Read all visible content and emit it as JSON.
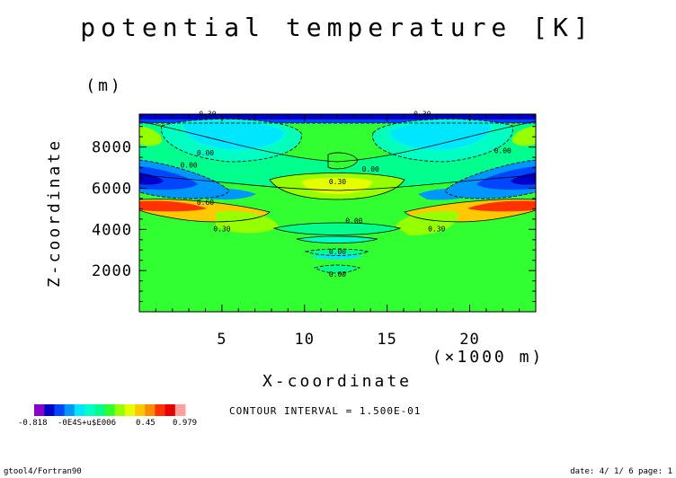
{
  "chart_data": {
    "type": "heatmap",
    "title": "potential temperature [K]",
    "xlabel": "X-coordinate",
    "x_unit": "(×1000 m)",
    "ylabel": "Z-coordinate",
    "y_unit": "(m)",
    "xlim": [
      0,
      24
    ],
    "ylim": [
      0,
      9600
    ],
    "x_ticks": [
      5,
      10,
      15,
      20
    ],
    "y_ticks": [
      2000,
      4000,
      6000,
      8000
    ],
    "x_tick_labels": [
      "5",
      "10",
      "15",
      "20"
    ],
    "y_tick_labels": [
      "2000",
      "4000",
      "6000",
      "8000"
    ],
    "contour_interval_text": "CONTOUR INTERVAL = 1.500E-01",
    "contour_labels": [
      {
        "text": "-0.30",
        "x": 4,
        "z": 9500
      },
      {
        "text": "-0.30",
        "x": 17,
        "z": 9500
      },
      {
        "text": "0.00",
        "x": 3,
        "z": 7000
      },
      {
        "text": "0.00",
        "x": 4,
        "z": 7600
      },
      {
        "text": "0.00",
        "x": 14,
        "z": 6800
      },
      {
        "text": "0.00",
        "x": 22,
        "z": 7700
      },
      {
        "text": "0.30",
        "x": 12,
        "z": 6200
      },
      {
        "text": "0.60",
        "x": 4,
        "z": 5200
      },
      {
        "text": "0.30",
        "x": 5,
        "z": 3900
      },
      {
        "text": "0.00",
        "x": 13,
        "z": 4300
      },
      {
        "text": "0.30",
        "x": 18,
        "z": 3900
      },
      {
        "text": "0.00",
        "x": 12,
        "z": 2800
      },
      {
        "text": "0.00",
        "x": 12,
        "z": 1700
      }
    ],
    "colorbar": {
      "min_label": "-0.818",
      "mid_label": "-0E4S+u$E006",
      "val_label": "0.45",
      "max_label": "0.979",
      "colors": [
        "#8b00c8",
        "#0000c8",
        "#0046ff",
        "#0096ff",
        "#00e6ff",
        "#00ffc8",
        "#00ff8c",
        "#32ff32",
        "#96ff00",
        "#e6ff00",
        "#ffc800",
        "#ff8c00",
        "#ff3200",
        "#e60000",
        "#ffa0a0"
      ]
    }
  },
  "footer": {
    "left": "gtool4/Fortran90",
    "right": "date: 4/ 1/ 6 page: 1"
  }
}
